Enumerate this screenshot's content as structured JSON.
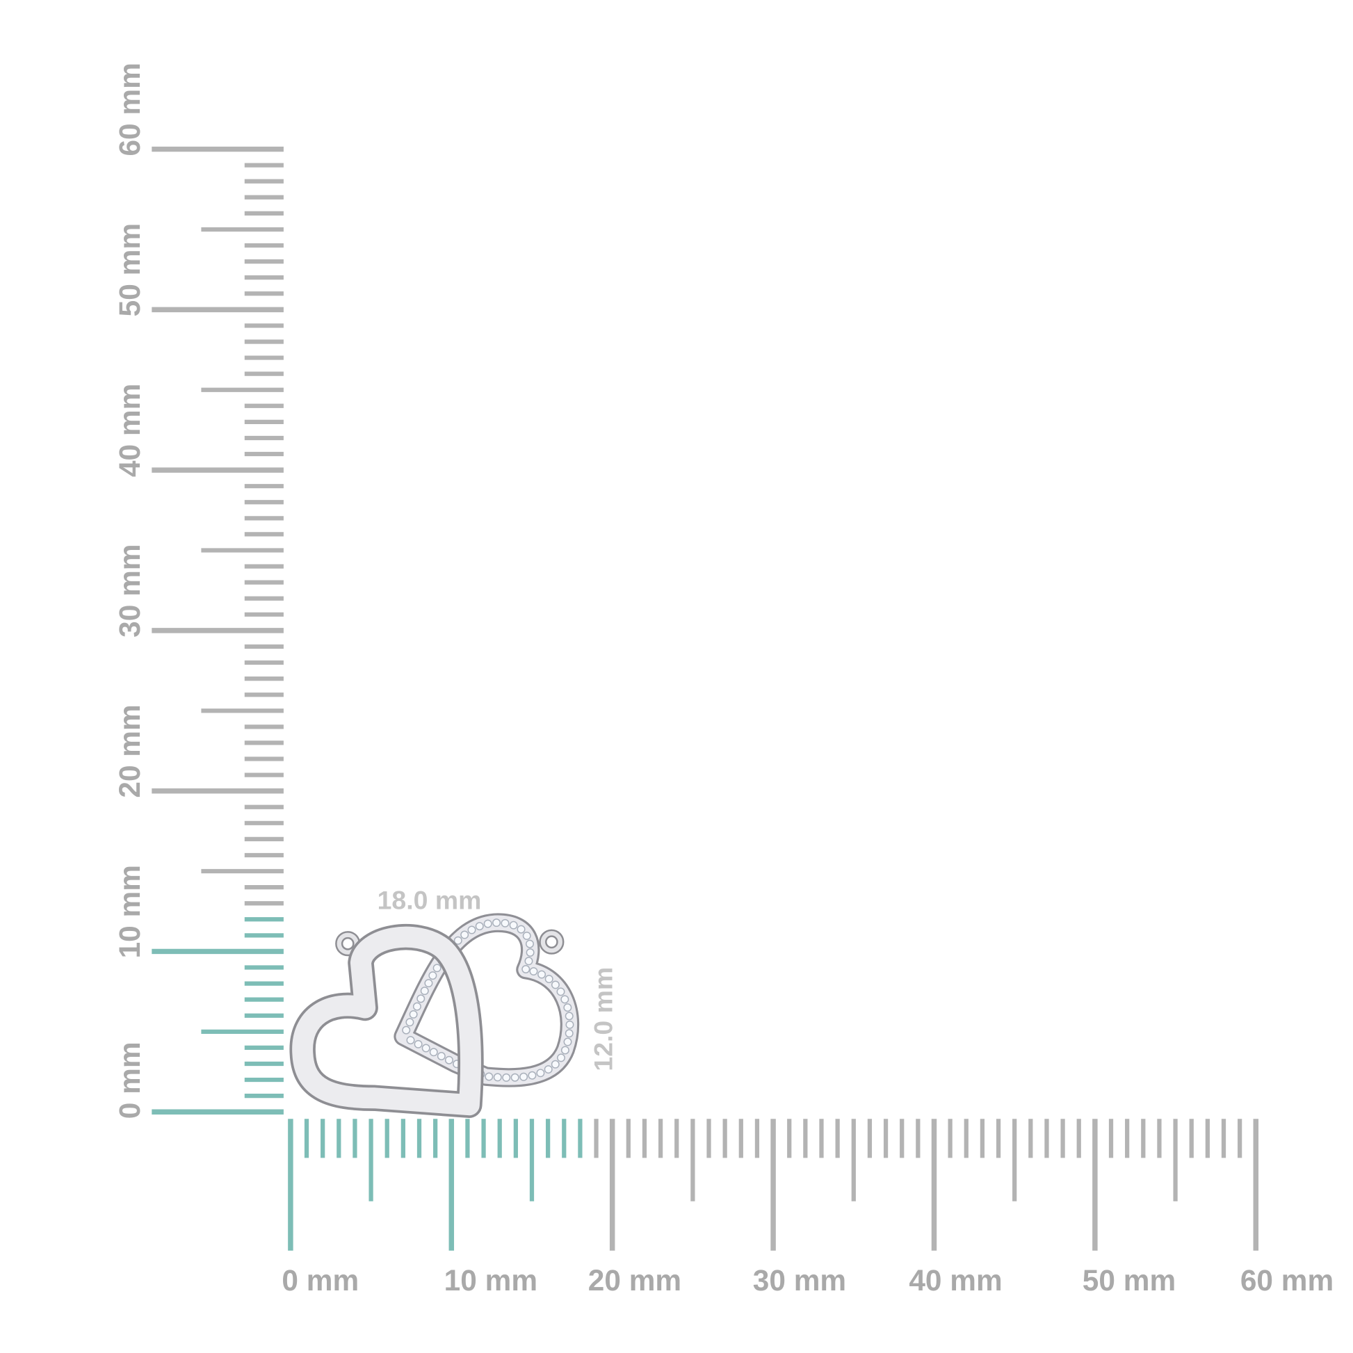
{
  "vertical_ruler": {
    "labels": [
      "0 mm",
      "10 mm",
      "20 mm",
      "30 mm",
      "40 mm",
      "50 mm",
      "60 mm"
    ],
    "range_mm": [
      0,
      60
    ],
    "highlight_to_mm": 12
  },
  "horizontal_ruler": {
    "labels": [
      "0 mm",
      "10 mm",
      "20 mm",
      "30 mm",
      "40 mm",
      "50 mm",
      "60 mm"
    ],
    "range_mm": [
      0,
      60
    ],
    "highlight_to_mm": 18
  },
  "dimensions": {
    "width": "18.0 mm",
    "height": "12.0 mm"
  },
  "product": {
    "description_icon": "interlocking-hearts-pendant"
  },
  "colors": {
    "highlight": "#7dbdb6",
    "ruler": "#b3b3b3",
    "label": "#a9a9a9"
  }
}
